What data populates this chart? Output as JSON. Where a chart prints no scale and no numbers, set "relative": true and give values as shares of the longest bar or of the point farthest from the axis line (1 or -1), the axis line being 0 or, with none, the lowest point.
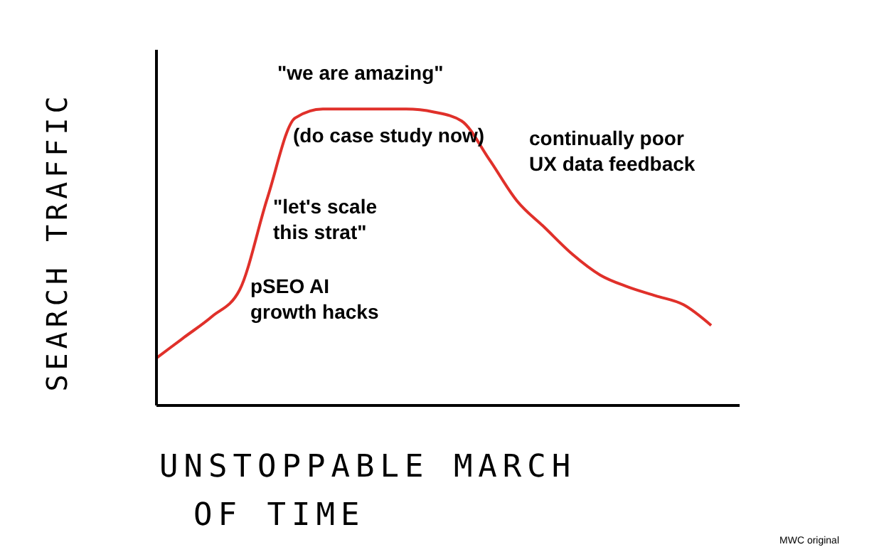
{
  "chart_data": {
    "type": "line",
    "relative": true,
    "xlabel": "UNSTOPPABLE MARCH\nOF TIME",
    "ylabel": "SEARCH TRAFFIC",
    "categories": [
      null,
      null,
      null,
      null,
      null,
      null,
      null,
      null,
      null,
      null,
      null,
      null,
      null,
      null,
      null,
      null,
      null,
      null,
      null,
      null,
      null
    ],
    "series": [
      {
        "color": "#e0302a",
        "values": [
          0.16,
          0.23,
          0.3,
          0.39,
          0.7,
          0.97,
          1,
          1,
          1,
          1,
          0.99,
          0.96,
          0.83,
          0.69,
          0.6,
          0.51,
          0.44,
          0.4,
          0.37,
          0.34,
          0.27
        ]
      }
    ],
    "marker": "none",
    "line_style": "solid",
    "annotations": [
      "\"we are amazing\"",
      "(do case study now)",
      "continually poor\nUX data feedback",
      "\"let's scale\nthis strat\"",
      "pSEO AI\ngrowth hacks",
      "MWC original"
    ]
  }
}
